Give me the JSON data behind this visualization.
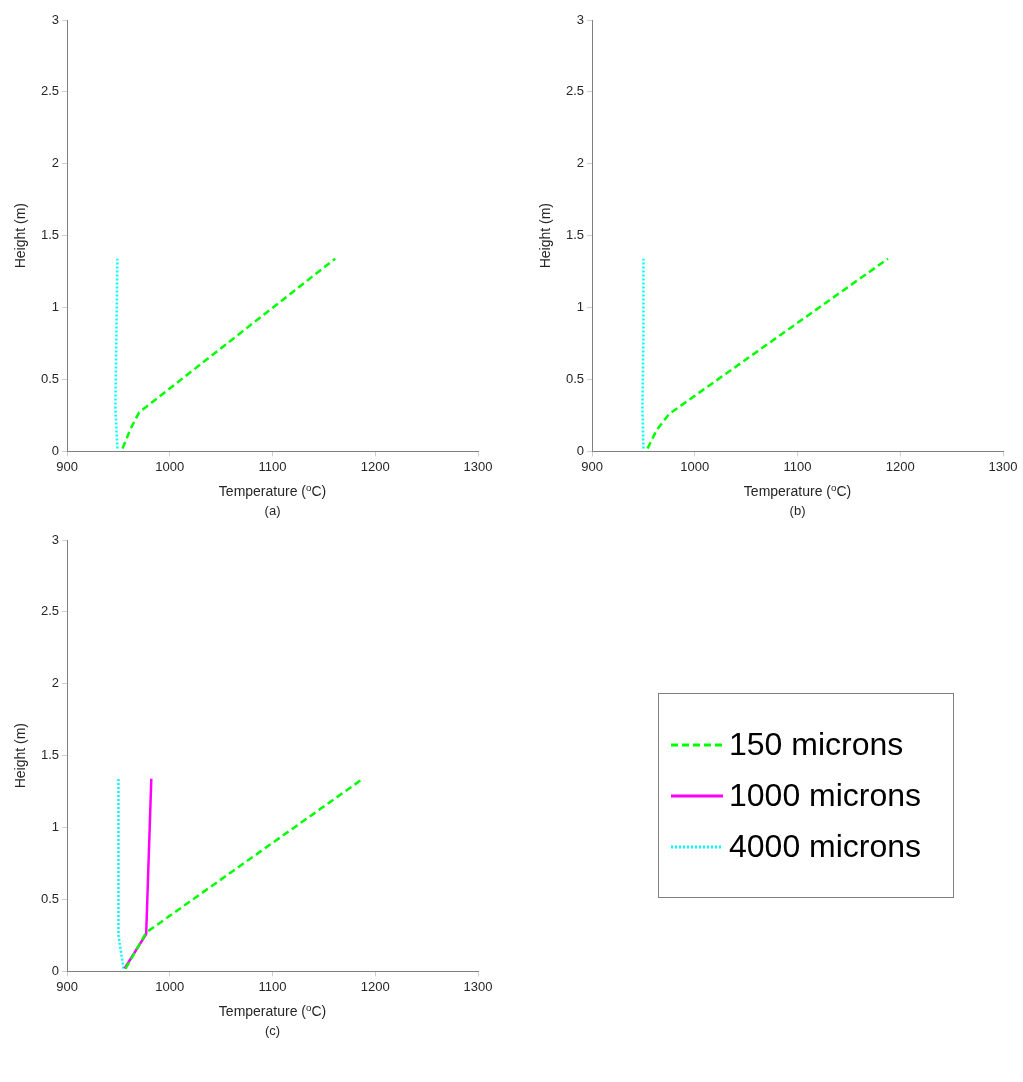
{
  "chart_data": [
    {
      "type": "line",
      "xlabel": "Temperature ($^{o}$C)",
      "ylabel": "Height (m)",
      "annotations": [
        "(a)"
      ],
      "xlim": [
        900,
        1300
      ],
      "xticks": [
        900,
        1000,
        1100,
        1200,
        1300
      ],
      "ylim": [
        0,
        3
      ],
      "yticks": [
        0,
        0.5,
        1,
        1.5,
        2,
        2.5,
        3
      ],
      "grid": false,
      "legend": false,
      "marker": "none",
      "series": [
        {
          "color": "#00ff00",
          "line_style": "dashed",
          "x": [
            954,
            962,
            970,
            1161
          ],
          "values": [
            0.02,
            0.16,
            0.27,
            1.34
          ]
        },
        {
          "color": "#00ffff",
          "line_style": "dotted",
          "x": [
            949,
            947,
            948,
            949
          ],
          "values": [
            0.02,
            0.3,
            0.8,
            1.34
          ]
        }
      ]
    },
    {
      "type": "line",
      "xlabel": "Temperature ($^{o}$C)",
      "ylabel": "Height (m)",
      "annotations": [
        "(b)"
      ],
      "xlim": [
        900,
        1300
      ],
      "xticks": [
        900,
        1000,
        1100,
        1200,
        1300
      ],
      "ylim": [
        0,
        3
      ],
      "yticks": [
        0,
        0.5,
        1,
        1.5,
        2,
        2.5,
        3
      ],
      "grid": false,
      "legend": false,
      "marker": "none",
      "series": [
        {
          "color": "#00ff00",
          "line_style": "dashed",
          "x": [
            954,
            963,
            975,
            1188
          ],
          "values": [
            0.02,
            0.15,
            0.26,
            1.34
          ]
        },
        {
          "color": "#00ffff",
          "line_style": "dotted",
          "x": [
            950,
            949,
            950,
            950
          ],
          "values": [
            0.02,
            0.3,
            0.8,
            1.34
          ]
        }
      ]
    },
    {
      "type": "line",
      "xlabel": "Temperature ($^{o}$C)",
      "ylabel": "Height (m)",
      "annotations": [
        "(c)"
      ],
      "xlim": [
        900,
        1300
      ],
      "xticks": [
        900,
        1000,
        1100,
        1200,
        1300
      ],
      "ylim": [
        0,
        3
      ],
      "yticks": [
        0,
        0.5,
        1,
        1.5,
        2,
        2.5,
        3
      ],
      "grid": false,
      "legend": "right",
      "marker": "none",
      "series": [
        {
          "name": "150 microns",
          "color": "#00ff00",
          "line_style": "dashed",
          "x": [
            957,
            977,
            1188
          ],
          "values": [
            0.02,
            0.27,
            1.34
          ]
        },
        {
          "name": "1000 microns",
          "color": "#ff00ff",
          "line_style": "solid",
          "x": [
            956,
            977,
            982
          ],
          "values": [
            0.02,
            0.26,
            1.34
          ]
        },
        {
          "name": "4000 microns",
          "color": "#00ffff",
          "line_style": "dotted",
          "x": [
            955,
            950,
            950
          ],
          "values": [
            0.02,
            0.25,
            1.34
          ]
        }
      ]
    }
  ]
}
